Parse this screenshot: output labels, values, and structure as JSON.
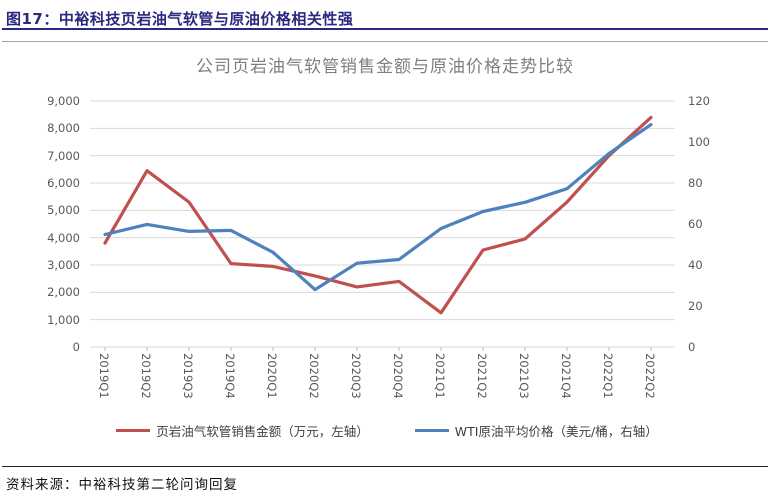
{
  "figure": {
    "title": "图17：中裕科技页岩油气软管与原油价格相关性强",
    "source": "资料来源：中裕科技第二轮问询回复"
  },
  "colors": {
    "header_navy": "#29297f",
    "grid": "#d9d9d9",
    "axis_text": "#595959",
    "series_red": "#c0504d",
    "series_blue": "#4f81bd"
  },
  "chart_data": {
    "type": "line",
    "title": "公司页岩油气软管销售金额与原油价格走势比较",
    "categories": [
      "2019Q1",
      "2019Q2",
      "2019Q3",
      "2019Q4",
      "2020Q1",
      "2020Q2",
      "2020Q3",
      "2020Q4",
      "2021Q1",
      "2021Q2",
      "2021Q3",
      "2021Q4",
      "2022Q1",
      "2022Q2"
    ],
    "series": [
      {
        "name": "页岩油气软管销售金额（万元，左轴）",
        "axis": "left",
        "color": "#c0504d",
        "values": [
          3800,
          6450,
          5300,
          3050,
          2950,
          2600,
          2200,
          2400,
          1250,
          3550,
          3950,
          5300,
          7000,
          8400
        ]
      },
      {
        "name": "WTI原油平均价格（美元/桶，右轴）",
        "axis": "right",
        "color": "#4f81bd",
        "values": [
          54.9,
          59.8,
          56.4,
          56.9,
          46.2,
          28.0,
          40.9,
          42.7,
          57.8,
          66.1,
          70.6,
          77.2,
          94.4,
          108.5
        ]
      }
    ],
    "left_axis": {
      "min": 0,
      "max": 9000,
      "step": 1000,
      "tick_labels": [
        "0",
        "1,000",
        "2,000",
        "3,000",
        "4,000",
        "5,000",
        "6,000",
        "7,000",
        "8,000",
        "9,000"
      ]
    },
    "right_axis": {
      "min": 0,
      "max": 120,
      "step": 20,
      "tick_labels": [
        "0",
        "20",
        "40",
        "60",
        "80",
        "100",
        "120"
      ]
    },
    "grid": true,
    "legend_position": "bottom"
  }
}
